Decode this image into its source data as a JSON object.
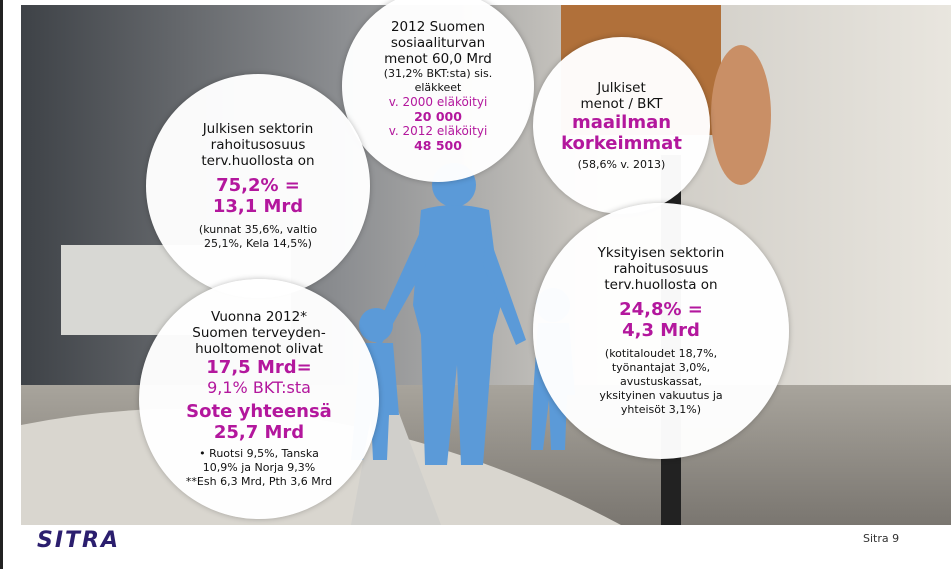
{
  "circles": [
    {
      "lines": [
        "2012 Suomen",
        "sosiaaliturvan",
        "menot 60,0 Mrd",
        "(31,2% BKT:sta) sis.",
        "eläkkeet",
        "v. 2000 eläköityi",
        "20 000",
        "v. 2012 eläköityi",
        "48 500"
      ]
    },
    {
      "lines": [
        "Julkisen sektorin",
        "rahoitusosuus",
        "terv.huollosta on",
        "75,2% =",
        "13,1 Mrd",
        "(kunnat 35,6%, valtio",
        "25,1%, Kela 14,5%)"
      ]
    },
    {
      "lines": [
        "Julkiset",
        "menot / BKT",
        "maailman",
        "korkeimmat",
        "(58,6% v. 2013)"
      ]
    },
    {
      "lines": [
        "Yksityisen sektorin",
        "rahoitusosuus",
        "terv.huollosta on",
        "24,8% =",
        "4,3 Mrd",
        "(kotitaloudet 18,7%,",
        "työnantajat 3,0%,",
        "avustuskassat,",
        "yksityinen vakuutus ja",
        "yhteisöt 3,1%)"
      ]
    },
    {
      "lines": [
        "Vuonna 2012*",
        "Suomen terveyden-",
        "huoltomenot olivat",
        "17,5 Mrd=",
        "9,1% BKT:sta",
        "Sote yhteensä",
        "25,7 Mrd",
        "Ruotsi 9,5%, Tanska",
        "10,9% ja Norja 9,3%",
        "**Esh 6,3 Mrd, Pth 3,6 Mrd"
      ]
    }
  ],
  "logo": "SITRA",
  "footer": "Sitra 9"
}
